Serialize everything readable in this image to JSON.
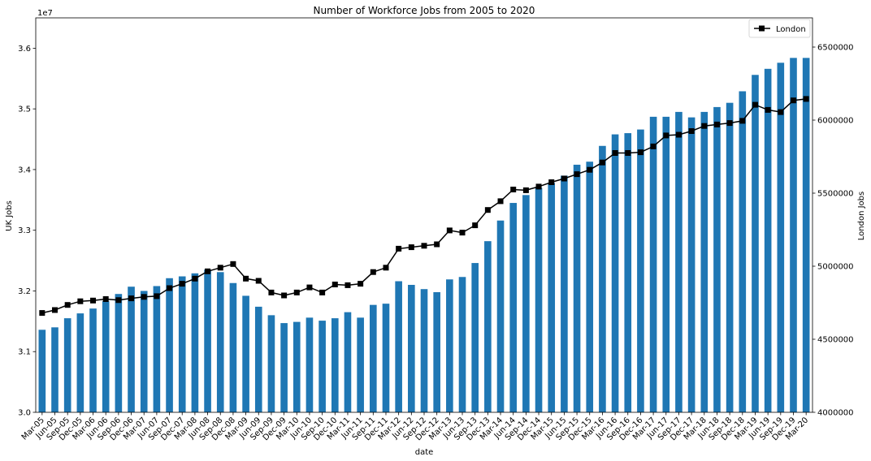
{
  "chart_data": {
    "type": "bar",
    "title": "Number of Workforce Jobs from 2005 to 2020",
    "xlabel": "date",
    "ylabel": "UK Jobs",
    "y2label": "London Jobs",
    "y_offset_text": "1e7",
    "ylim": [
      30000000,
      36500000
    ],
    "y2lim": [
      4000000,
      6700000
    ],
    "yticks": [
      "3.0",
      "3.1",
      "3.2",
      "3.3",
      "3.4",
      "3.5",
      "3.6"
    ],
    "y2ticks": [
      "4000000",
      "4500000",
      "5000000",
      "5500000",
      "6000000",
      "6500000"
    ],
    "legend_position": "top-right",
    "categories": [
      "Mar-05",
      "Jun-05",
      "Sep-05",
      "Dec-05",
      "Mar-06",
      "Jun-06",
      "Sep-06",
      "Dec-06",
      "Mar-07",
      "Jun-07",
      "Sep-07",
      "Dec-07",
      "Mar-08",
      "Jun-08",
      "Sep-08",
      "Dec-08",
      "Mar-09",
      "Jun-09",
      "Sep-09",
      "Dec-09",
      "Mar-10",
      "Jun-10",
      "Sep-10",
      "Dec-10",
      "Mar-11",
      "Jun-11",
      "Sep-11",
      "Dec-11",
      "Mar-12",
      "Jun-12",
      "Sep-12",
      "Dec-12",
      "Mar-13",
      "Jun-13",
      "Sep-13",
      "Dec-13",
      "Mar-14",
      "Jun-14",
      "Sep-14",
      "Dec-14",
      "Mar-15",
      "Jun-15",
      "Sep-15",
      "Dec-15",
      "Mar-16",
      "Jun-16",
      "Sep-16",
      "Dec-16",
      "Mar-17",
      "Jun-17",
      "Sep-17",
      "Dec-17",
      "Mar-18",
      "Jun-18",
      "Sep-18",
      "Dec-18",
      "Mar-19",
      "Jun-19",
      "Sep-19",
      "Dec-19",
      "Mar-20"
    ],
    "series": [
      {
        "name": "",
        "kind": "bar",
        "axis": "left",
        "color": "#1f77b4",
        "values": [
          31360000,
          31400000,
          31550000,
          31630000,
          31710000,
          31830000,
          31950000,
          32070000,
          32000000,
          32080000,
          32210000,
          32240000,
          32290000,
          32350000,
          32310000,
          32130000,
          31920000,
          31740000,
          31600000,
          31470000,
          31490000,
          31560000,
          31510000,
          31550000,
          31650000,
          31560000,
          31770000,
          31790000,
          32160000,
          32100000,
          32030000,
          31980000,
          32190000,
          32230000,
          32460000,
          32820000,
          33160000,
          33450000,
          33580000,
          33700000,
          33780000,
          33900000,
          34080000,
          34130000,
          34390000,
          34580000,
          34600000,
          34660000,
          34870000,
          34870000,
          34950000,
          34860000,
          34950000,
          35030000,
          35100000,
          35290000,
          35560000,
          35660000,
          35760000,
          35840000,
          35840000
        ]
      },
      {
        "name": "London",
        "kind": "line",
        "axis": "right",
        "color": "#000000",
        "values": [
          4680000,
          4700000,
          4735000,
          4760000,
          4765000,
          4775000,
          4768000,
          4780000,
          4790000,
          4795000,
          4850000,
          4880000,
          4915000,
          4965000,
          4990000,
          5015000,
          4915000,
          4900000,
          4820000,
          4800000,
          4820000,
          4855000,
          4820000,
          4875000,
          4870000,
          4880000,
          4960000,
          4990000,
          5120000,
          5130000,
          5140000,
          5150000,
          5245000,
          5230000,
          5280000,
          5385000,
          5445000,
          5525000,
          5520000,
          5545000,
          5575000,
          5600000,
          5630000,
          5660000,
          5710000,
          5775000,
          5775000,
          5780000,
          5820000,
          5895000,
          5900000,
          5925000,
          5960000,
          5970000,
          5980000,
          5995000,
          6105000,
          6070000,
          6055000,
          6135000,
          6145000
        ]
      }
    ]
  }
}
